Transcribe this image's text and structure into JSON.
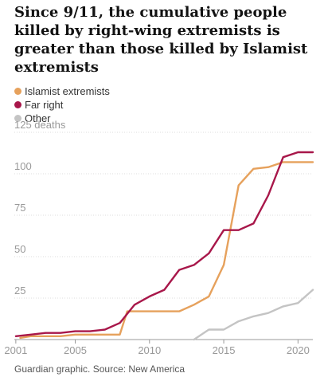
{
  "chart_data": {
    "type": "line",
    "title": "Since 9/11, the cumulative people killed by right-wing extremists is greater than those killed by Islamist extremists",
    "source": "Guardian graphic. Source: New America",
    "y_unit_label": "deaths",
    "ylim": [
      0,
      125
    ],
    "xlim": [
      2000.9,
      2021.0
    ],
    "y_ticks": [
      0,
      25,
      50,
      75,
      100,
      125
    ],
    "x_ticks": [
      2001,
      2005,
      2010,
      2015,
      2020
    ],
    "grid": true,
    "legend_position": "top-left",
    "series": [
      {
        "name": "Islamist extremists",
        "color": "#e6a15c",
        "points": [
          [
            2001.3,
            1
          ],
          [
            2002,
            2
          ],
          [
            2003,
            2
          ],
          [
            2004,
            2
          ],
          [
            2005,
            3
          ],
          [
            2006,
            3
          ],
          [
            2007,
            3
          ],
          [
            2008,
            3
          ],
          [
            2008.5,
            17
          ],
          [
            2009,
            17
          ],
          [
            2010,
            17
          ],
          [
            2011,
            17
          ],
          [
            2012,
            17
          ],
          [
            2013,
            21
          ],
          [
            2014,
            26
          ],
          [
            2015,
            45
          ],
          [
            2016,
            93
          ],
          [
            2017,
            103
          ],
          [
            2018,
            104
          ],
          [
            2019,
            107
          ],
          [
            2020,
            107
          ],
          [
            2021,
            107
          ]
        ]
      },
      {
        "name": "Far right",
        "color": "#a8174a",
        "points": [
          [
            2001,
            2
          ],
          [
            2002,
            3
          ],
          [
            2003,
            4
          ],
          [
            2004,
            4
          ],
          [
            2005,
            5
          ],
          [
            2006,
            5
          ],
          [
            2007,
            6
          ],
          [
            2008,
            10
          ],
          [
            2009,
            21
          ],
          [
            2010,
            26
          ],
          [
            2011,
            30
          ],
          [
            2012,
            42
          ],
          [
            2013,
            45
          ],
          [
            2014,
            52
          ],
          [
            2015,
            66
          ],
          [
            2016,
            66
          ],
          [
            2017,
            70
          ],
          [
            2018,
            87
          ],
          [
            2019,
            110
          ],
          [
            2020,
            113
          ],
          [
            2021,
            113
          ]
        ]
      },
      {
        "name": "Other",
        "color": "#c4c4c4",
        "points": [
          [
            2013,
            0
          ],
          [
            2014,
            6
          ],
          [
            2015,
            6
          ],
          [
            2016,
            11
          ],
          [
            2017,
            14
          ],
          [
            2018,
            16
          ],
          [
            2019,
            20
          ],
          [
            2020,
            22
          ],
          [
            2021,
            30
          ]
        ]
      }
    ]
  }
}
